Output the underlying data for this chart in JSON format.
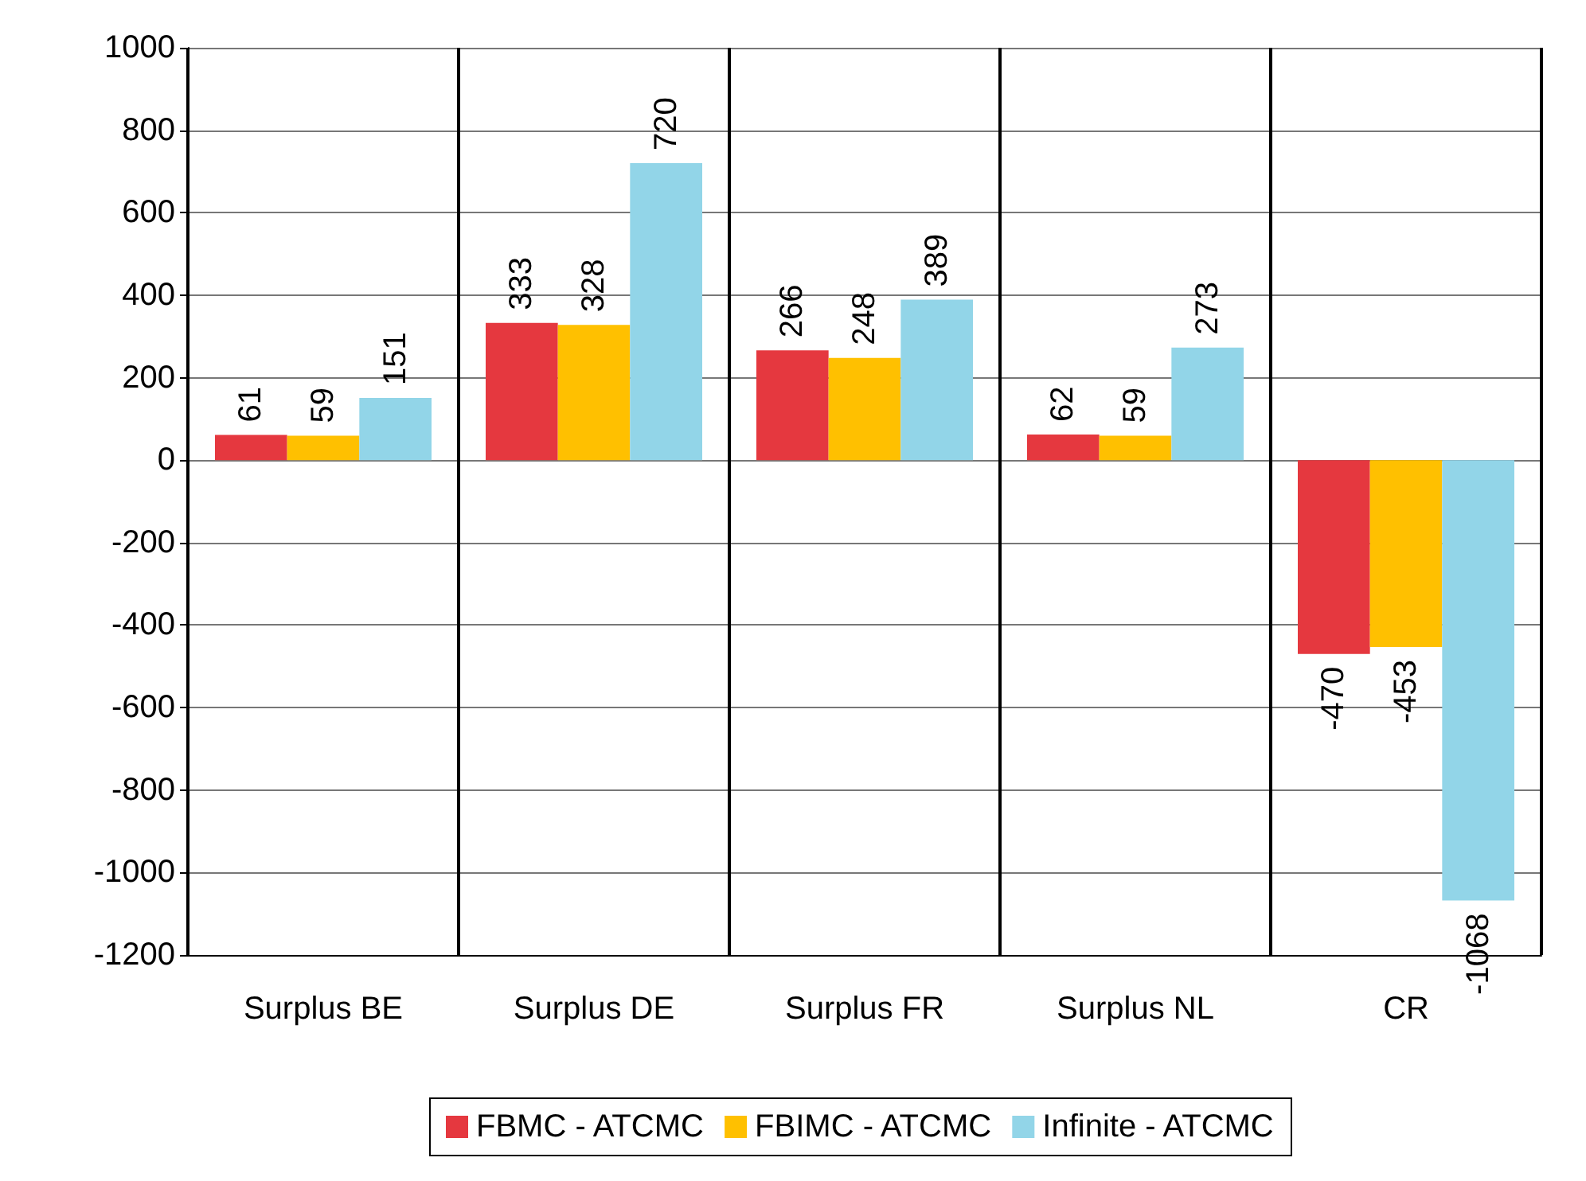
{
  "chart_data": {
    "type": "bar",
    "categories": [
      "Surplus BE",
      "Surplus DE",
      "Surplus FR",
      "Surplus NL",
      "CR"
    ],
    "series": [
      {
        "name": "FBMC - ATCMC",
        "color": "#e5383f",
        "values": [
          61,
          333,
          266,
          62,
          -470
        ]
      },
      {
        "name": "FBIMC - ATCMC",
        "color": "#ffc000",
        "values": [
          59,
          328,
          248,
          59,
          -453
        ]
      },
      {
        "name": "Infinite - ATCMC",
        "color": "#92d5e8",
        "values": [
          151,
          720,
          389,
          273,
          -1068
        ]
      }
    ],
    "ylim": [
      -1200,
      1000
    ],
    "yticks": [
      -1200,
      -1000,
      -800,
      -600,
      -400,
      -200,
      0,
      200,
      400,
      600,
      800,
      1000
    ],
    "grid": true,
    "legend": "bottom",
    "data_labels": true
  }
}
